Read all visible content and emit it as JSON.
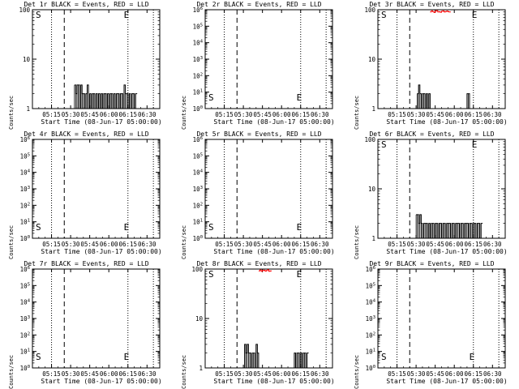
{
  "page": {
    "xlabel": "Start Time (08-Jun-17 05:00:00)",
    "ylabel": "Counts/sec",
    "legend_text": "BLACK = Events, RED = LLD"
  },
  "chart_data": [
    {
      "type": "line",
      "title": "Det 1r BLACK = Events, RED = LLD",
      "xlabel": "Start Time (08-Jun-17 05:00:00)",
      "ylabel": "Counts/sec",
      "yscale": "log",
      "ylim": [
        1,
        100
      ],
      "yticks": [
        "1",
        "10",
        "100"
      ],
      "xticks": [
        "05:15",
        "05:30",
        "05:45",
        "06:00",
        "06:15",
        "06:30"
      ],
      "markers": {
        "S": "05:00",
        "E": "06:13"
      },
      "series": [
        {
          "color": "#000000",
          "x": [
            "05:33",
            "05:34",
            "05:35",
            "05:36",
            "05:37",
            "05:38",
            "05:39",
            "05:40",
            "05:41",
            "05:42",
            "05:43",
            "05:44",
            "05:45",
            "05:46",
            "05:47",
            "05:48",
            "05:49",
            "05:50",
            "05:51",
            "05:52",
            "05:53",
            "05:54",
            "05:55",
            "05:56",
            "05:57",
            "05:58",
            "05:59",
            "06:00",
            "06:01",
            "06:02",
            "06:03",
            "06:04",
            "06:05",
            "06:06",
            "06:07",
            "06:08",
            "06:09",
            "06:10",
            "06:11",
            "06:12",
            "06:13",
            "06:14",
            "06:15",
            "06:16",
            "06:17",
            "06:18",
            "06:19",
            "06:20",
            "06:21"
          ],
          "y": [
            3,
            2,
            3,
            3,
            1,
            3,
            2,
            2,
            1,
            2,
            3,
            1,
            2,
            1,
            2,
            2,
            1,
            2,
            1,
            2,
            1,
            2,
            1,
            2,
            2,
            1,
            2,
            1,
            2,
            2,
            1,
            2,
            1,
            2,
            2,
            1,
            2,
            2,
            1,
            3,
            2,
            2,
            1,
            2,
            1,
            2,
            2,
            1,
            2
          ]
        }
      ]
    },
    {
      "type": "line",
      "title": "Det 2r BLACK = Events, RED = LLD",
      "xlabel": "Start Time (08-Jun-17 05:00:00)",
      "ylabel": "Counts/sec",
      "yscale": "log",
      "ylim": [
        1,
        1000000
      ],
      "yticks": [
        "10^0",
        "10^1",
        "10^2",
        "10^3",
        "10^4",
        "10^5",
        "10^6"
      ],
      "xticks": [
        "05:15",
        "05:30",
        "05:45",
        "06:00",
        "06:15",
        "06:30"
      ],
      "markers": {
        "S": "05:00",
        "E": "06:13"
      },
      "series": []
    },
    {
      "type": "line",
      "title": "Det 3r BLACK = Events, RED = LLD",
      "xlabel": "Start Time (08-Jun-17 05:00:00)",
      "ylabel": "Counts/sec",
      "yscale": "log",
      "ylim": [
        1,
        100
      ],
      "yticks": [
        "1",
        "10",
        "100"
      ],
      "xticks": [
        "05:15",
        "05:30",
        "05:45",
        "06:00",
        "06:15",
        "06:30"
      ],
      "markers": {
        "S": "05:00",
        "E": "06:15"
      },
      "series": [
        {
          "color": "#000000",
          "x": [
            "05:30",
            "05:31",
            "05:32",
            "05:33",
            "05:34",
            "05:35",
            "05:36",
            "05:37",
            "05:38",
            "05:39",
            "05:40",
            "05:41",
            "05:42",
            "05:43",
            "05:44",
            "05:45",
            "05:46",
            "05:47",
            "05:48",
            "05:49",
            "05:50",
            "05:51",
            "05:52",
            "05:53",
            "05:54",
            "05:55",
            "05:56",
            "05:57",
            "05:58",
            "05:59",
            "06:00",
            "06:01",
            "06:02",
            "06:03",
            "06:04",
            "06:05",
            "06:06",
            "06:07",
            "06:08",
            "06:09",
            "06:10",
            "06:11",
            "06:12",
            "06:13",
            "06:14",
            "06:15",
            "06:16",
            "06:17",
            "06:18",
            "06:19",
            "06:20",
            "06:21"
          ],
          "y": [
            1,
            2,
            3,
            2,
            1,
            2,
            2,
            1,
            2,
            1,
            2,
            1,
            1,
            1,
            1,
            1,
            1,
            1,
            1,
            1,
            1,
            1,
            1,
            1,
            1,
            1,
            1,
            1,
            1,
            1,
            1,
            1,
            1,
            1,
            1,
            1,
            1,
            1,
            1,
            1,
            2,
            2,
            1,
            1,
            1,
            1,
            1,
            1,
            1,
            1,
            1,
            1
          ]
        },
        {
          "color": "#ff0000",
          "x": [
            "05:41",
            "05:42",
            "05:43",
            "05:44",
            "05:45",
            "05:46",
            "05:47",
            "05:48",
            "05:49",
            "05:50",
            "05:51",
            "05:52",
            "05:53",
            "05:54",
            "05:55",
            "05:56"
          ],
          "y": [
            90,
            95,
            92,
            88,
            94,
            96,
            90,
            91,
            89,
            93,
            95,
            90,
            92,
            94,
            91,
            90
          ]
        }
      ]
    },
    {
      "type": "line",
      "title": "Det 4r BLACK = Events, RED = LLD",
      "xlabel": "Start Time (08-Jun-17 05:00:00)",
      "ylabel": "Counts/sec",
      "yscale": "log",
      "ylim": [
        1,
        1000000
      ],
      "yticks": [
        "10^0",
        "10^1",
        "10^2",
        "10^3",
        "10^4",
        "10^5",
        "10^6"
      ],
      "xticks": [
        "05:15",
        "05:30",
        "05:45",
        "06:00",
        "06:15",
        "06:30"
      ],
      "markers": {
        "S": "05:00",
        "E": "06:13"
      },
      "series": []
    },
    {
      "type": "line",
      "title": "Det 5r BLACK = Events, RED = LLD",
      "xlabel": "Start Time (08-Jun-17 05:00:00)",
      "ylabel": "Counts/sec",
      "yscale": "log",
      "ylim": [
        1,
        1000000
      ],
      "yticks": [
        "10^0",
        "10^1",
        "10^2",
        "10^3",
        "10^4",
        "10^5",
        "10^6"
      ],
      "xticks": [
        "05:15",
        "05:30",
        "05:45",
        "06:00",
        "06:15",
        "06:30"
      ],
      "markers": {
        "S": "05:00",
        "E": "06:13"
      },
      "series": []
    },
    {
      "type": "line",
      "title": "Det 6r BLACK = Events, RED = LLD",
      "xlabel": "Start Time (08-Jun-17 05:00:00)",
      "ylabel": "Counts/sec",
      "yscale": "log",
      "ylim": [
        1,
        100
      ],
      "yticks": [
        "1",
        "10",
        "100"
      ],
      "xticks": [
        "05:15",
        "05:30",
        "05:45",
        "06:00",
        "06:15",
        "06:30"
      ],
      "markers": {
        "S": "05:00",
        "E": "06:15"
      },
      "series": [
        {
          "color": "#000000",
          "x": [
            "05:30",
            "05:31",
            "05:32",
            "05:33",
            "05:34",
            "05:35",
            "05:36",
            "05:37",
            "05:38",
            "05:39",
            "05:40",
            "05:41",
            "05:42",
            "05:43",
            "05:44",
            "05:45",
            "05:46",
            "05:47",
            "05:48",
            "05:49",
            "05:50",
            "05:51",
            "05:52",
            "05:53",
            "05:54",
            "05:55",
            "05:56",
            "05:57",
            "05:58",
            "05:59",
            "06:00",
            "06:01",
            "06:02",
            "06:03",
            "06:04",
            "06:05",
            "06:06",
            "06:07",
            "06:08",
            "06:09",
            "06:10",
            "06:11",
            "06:12",
            "06:13",
            "06:14",
            "06:15",
            "06:16",
            "06:17",
            "06:18",
            "06:19",
            "06:20",
            "06:21"
          ],
          "y": [
            3,
            3,
            2,
            3,
            2,
            1,
            2,
            2,
            2,
            1,
            2,
            1,
            2,
            2,
            1,
            2,
            2,
            1,
            2,
            2,
            1,
            2,
            2,
            1,
            2,
            2,
            2,
            1,
            2,
            2,
            1,
            2,
            2,
            2,
            1,
            2,
            2,
            1,
            2,
            2,
            2,
            1,
            2,
            2,
            1,
            2,
            2,
            1,
            2,
            2,
            1,
            2
          ]
        }
      ]
    },
    {
      "type": "line",
      "title": "Det 7r BLACK = Events, RED = LLD",
      "xlabel": "Start Time (08-Jun-17 05:00:00)",
      "ylabel": "Counts/sec",
      "yscale": "log",
      "ylim": [
        1,
        1000000
      ],
      "yticks": [
        "10^0",
        "10^1",
        "10^2",
        "10^3",
        "10^4",
        "10^5",
        "10^6"
      ],
      "xticks": [
        "05:15",
        "05:30",
        "05:45",
        "06:00",
        "06:15",
        "06:30"
      ],
      "markers": {
        "S": "05:00",
        "E": "06:13"
      },
      "series": []
    },
    {
      "type": "line",
      "title": "Det 8r BLACK = Events, RED = LLD",
      "xlabel": "Start Time (08-Jun-17 05:00:00)",
      "ylabel": "Counts/sec",
      "yscale": "log",
      "ylim": [
        1,
        100
      ],
      "yticks": [
        "1",
        "10",
        "100"
      ],
      "xticks": [
        "05:15",
        "05:30",
        "05:45",
        "06:00",
        "06:15",
        "06:30"
      ],
      "markers": {
        "S": "05:00",
        "E": "06:13"
      },
      "series": [
        {
          "color": "#000000",
          "x": [
            "05:30",
            "05:31",
            "05:32",
            "05:33",
            "05:34",
            "05:35",
            "05:36",
            "05:37",
            "05:38",
            "05:39",
            "05:40",
            "05:41",
            "05:42",
            "05:43",
            "05:44",
            "05:45",
            "05:46",
            "05:47",
            "05:48",
            "05:49",
            "05:50",
            "05:51",
            "05:52",
            "05:53",
            "05:54",
            "05:55",
            "05:56",
            "05:57",
            "05:58",
            "05:59",
            "06:00",
            "06:01",
            "06:02",
            "06:03",
            "06:04",
            "06:05",
            "06:06",
            "06:07",
            "06:08",
            "06:09",
            "06:10",
            "06:11",
            "06:12",
            "06:13",
            "06:14",
            "06:15",
            "06:16",
            "06:17",
            "06:18",
            "06:19",
            "06:20"
          ],
          "y": [
            1,
            3,
            2,
            3,
            2,
            2,
            1,
            2,
            2,
            1,
            3,
            2,
            1,
            1,
            1,
            1,
            1,
            1,
            1,
            1,
            1,
            1,
            1,
            1,
            1,
            1,
            1,
            1,
            1,
            1,
            1,
            1,
            1,
            1,
            1,
            1,
            1,
            1,
            1,
            1,
            2,
            1,
            2,
            2,
            1,
            2,
            1,
            2,
            2,
            1,
            2
          ]
        },
        {
          "color": "#ff0000",
          "x": [
            "05:42",
            "05:43",
            "05:44",
            "05:45",
            "05:46",
            "05:47",
            "05:48",
            "05:49",
            "05:50",
            "05:51"
          ],
          "y": [
            92,
            96,
            90,
            94,
            95,
            91,
            93,
            97,
            90,
            92
          ]
        }
      ]
    },
    {
      "type": "line",
      "title": "Det 9r BLACK = Events, RED = LLD",
      "xlabel": "Start Time (08-Jun-17 05:00:00)",
      "ylabel": "Counts/sec",
      "yscale": "log",
      "ylim": [
        1,
        1000000
      ],
      "yticks": [
        "10^0",
        "10^1",
        "10^2",
        "10^3",
        "10^4",
        "10^5",
        "10^6"
      ],
      "xticks": [
        "05:15",
        "05:30",
        "05:45",
        "06:00",
        "06:15",
        "06:30"
      ],
      "markers": {
        "S": "05:00",
        "E": "06:13"
      },
      "series": []
    }
  ]
}
